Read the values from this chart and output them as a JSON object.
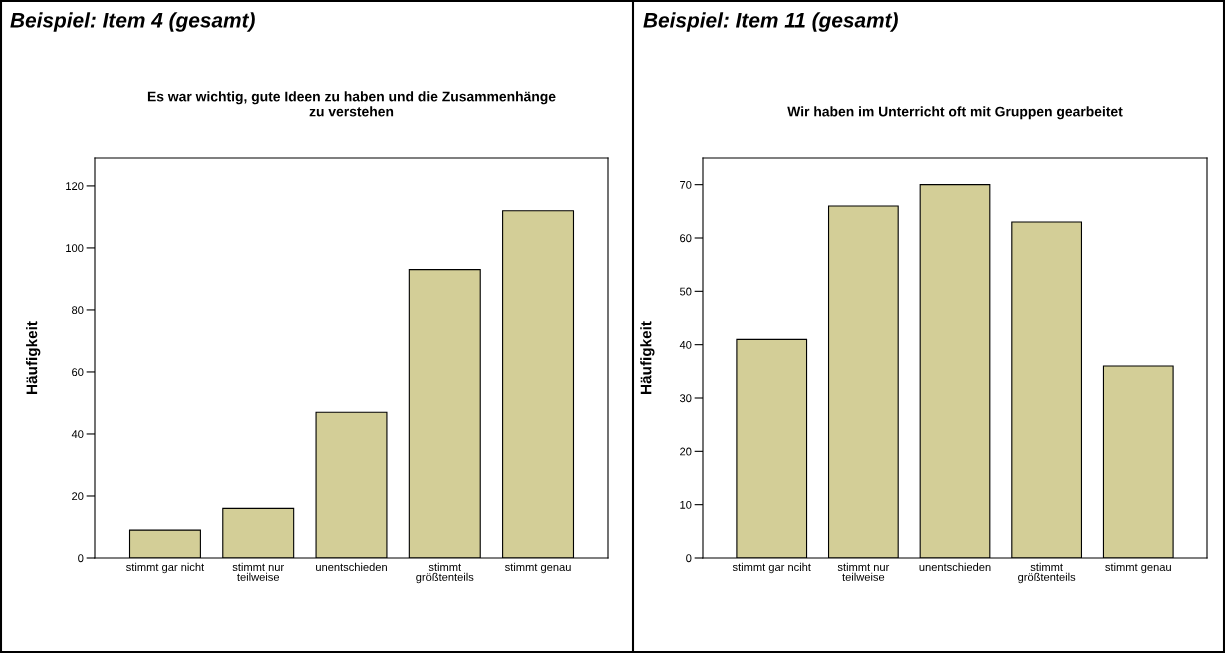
{
  "chart_data": [
    {
      "type": "bar",
      "title": "Beispiel: Item 4 (gesamt)",
      "subtitle": "Es war wichtig, gute Ideen zu haben und die Zusammenhänge\nzu verstehen",
      "ylabel": "Häufigkeit",
      "categories": [
        "stimmt gar nicht",
        "stimmt nur\nteilweise",
        "unentschieden",
        "stimmt\ngrößtenteils",
        "stimmt genau"
      ],
      "values": [
        9,
        16,
        47,
        93,
        112
      ],
      "color": "#d3ce97",
      "ylim": [
        0,
        129
      ],
      "yticks": [
        0,
        20,
        40,
        60,
        80,
        100,
        120
      ],
      "grid": false,
      "legend": false
    },
    {
      "type": "bar",
      "title": "Beispiel: Item 11 (gesamt)",
      "subtitle": "Wir haben im Unterricht oft mit Gruppen gearbeitet",
      "ylabel": "Häufigkeit",
      "categories": [
        "stimmt gar nciht",
        "stimmt nur\nteilweise",
        "unentschieden",
        "stimmt\ngrößtenteils",
        "stimmt genau"
      ],
      "values": [
        41,
        66,
        70,
        63,
        36
      ],
      "color": "#d3ce97",
      "ylim": [
        0,
        75
      ],
      "yticks": [
        0,
        10,
        20,
        30,
        40,
        50,
        60,
        70
      ],
      "grid": false,
      "legend": false
    }
  ]
}
